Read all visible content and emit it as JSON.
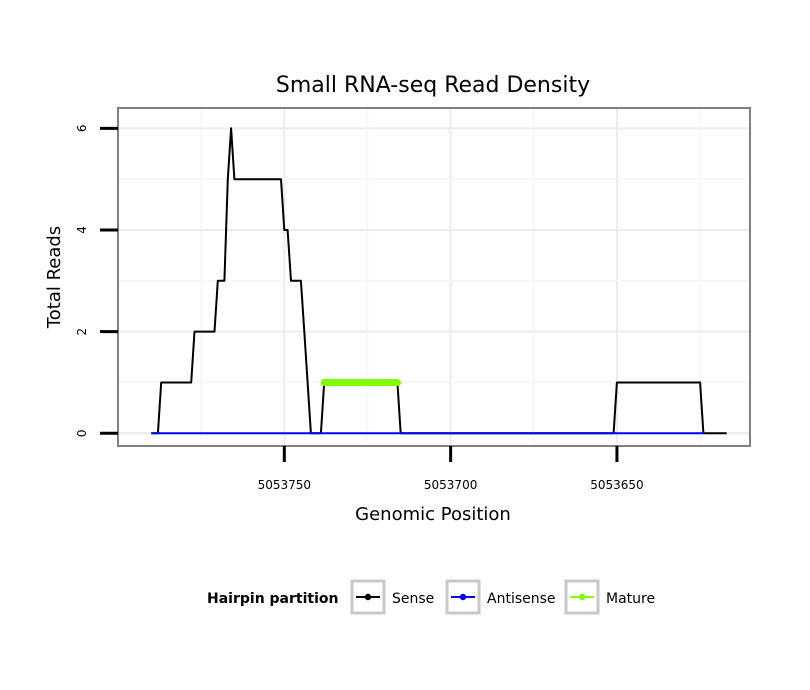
{
  "chart_data": {
    "type": "line",
    "title": "Small RNA-seq Read Density",
    "xlabel": "Genomic Position",
    "ylabel": "Total Reads",
    "xlim": [
      5053800,
      5053610
    ],
    "x_reversed": true,
    "ylim": [
      -0.25,
      6.4
    ],
    "x_ticks": [
      5053750,
      5053700,
      5053650
    ],
    "x_tick_labels": [
      "5053750",
      "5053700",
      "5053650"
    ],
    "y_ticks": [
      0,
      2,
      4,
      6
    ],
    "y_tick_labels": [
      "0",
      "2",
      "4",
      "6"
    ],
    "grid": true,
    "series": [
      {
        "name": "Sense",
        "color": "#000000",
        "points": [
          [
            5053790,
            0
          ],
          [
            5053788,
            0
          ],
          [
            5053787,
            1
          ],
          [
            5053778,
            1
          ],
          [
            5053777,
            2
          ],
          [
            5053771,
            2
          ],
          [
            5053770,
            3
          ],
          [
            5053768,
            3
          ],
          [
            5053767,
            5
          ],
          [
            5053766,
            6
          ],
          [
            5053765,
            5
          ],
          [
            5053751,
            5
          ],
          [
            5053750,
            4
          ],
          [
            5053749,
            4
          ],
          [
            5053748,
            3
          ],
          [
            5053745,
            3
          ],
          [
            5053744,
            2
          ],
          [
            5053742,
            0
          ],
          [
            5053739,
            0
          ],
          [
            5053738,
            1
          ],
          [
            5053716,
            1
          ],
          [
            5053715,
            0
          ],
          [
            5053651,
            0
          ],
          [
            5053650,
            1
          ],
          [
            5053625,
            1
          ],
          [
            5053624,
            0
          ],
          [
            5053617,
            0
          ]
        ]
      },
      {
        "name": "Antisense",
        "color": "#0000ff",
        "points": [
          [
            5053790,
            0
          ],
          [
            5053624,
            0
          ]
        ]
      },
      {
        "name": "Mature",
        "color": "#7fff00",
        "points": [
          [
            5053738,
            1
          ],
          [
            5053716,
            1
          ]
        ]
      }
    ],
    "legend": {
      "title": "Hairpin partition",
      "placement": "bottom",
      "entries": [
        {
          "label": "Sense",
          "color": "#000000"
        },
        {
          "label": "Antisense",
          "color": "#0000ff"
        },
        {
          "label": "Mature",
          "color": "#7fff00"
        }
      ]
    }
  }
}
